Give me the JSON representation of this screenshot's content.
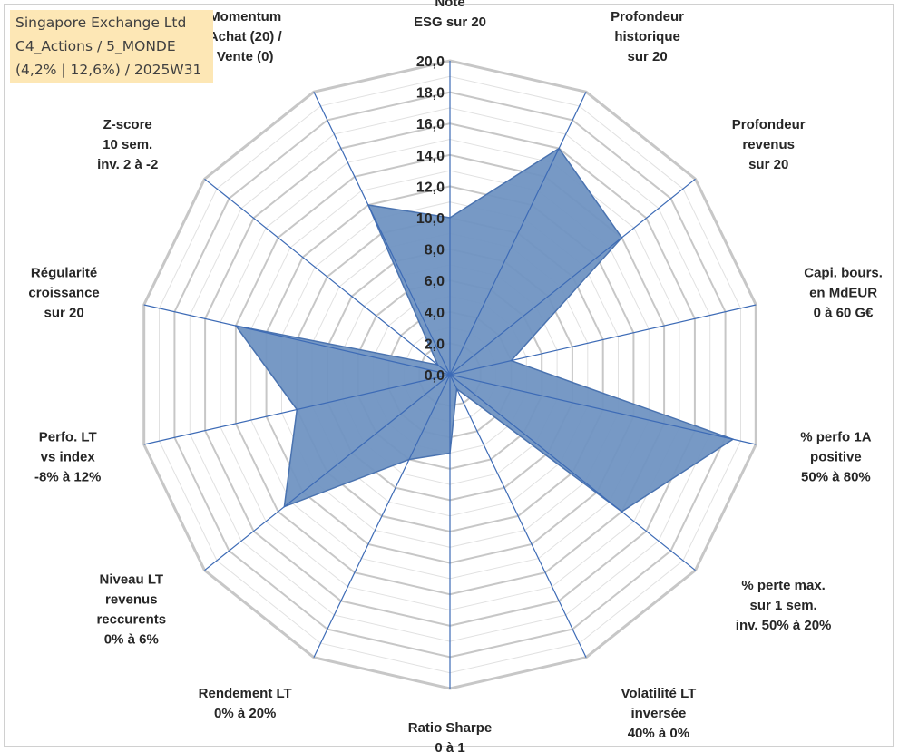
{
  "info": {
    "line1": "Singapore Exchange Ltd",
    "line2": "C4_Actions / 5_MONDE",
    "line3": "(4,2% | 12,6%) / 2025W31"
  },
  "colors": {
    "fill": "#7094c2",
    "outline": "#4a73b0",
    "axis": "#3d6bb6",
    "grid_major": "#c7c7c7",
    "grid_minor": "#e1e1e1",
    "info_bg": "#fde7b5"
  },
  "chart_data": {
    "type": "radar",
    "rmin": 0,
    "rmax": 20,
    "grid": true,
    "ticks": [
      "0,0",
      "2,0",
      "4,0",
      "6,0",
      "8,0",
      "10,0",
      "12,0",
      "14,0",
      "16,0",
      "18,0",
      "20,0"
    ],
    "axes": [
      [
        "Note",
        "ESG sur 20"
      ],
      [
        "Profondeur",
        "historique",
        "sur 20"
      ],
      [
        "Profondeur",
        "revenus",
        "sur 20"
      ],
      [
        "Capi. bours.",
        "en MdEUR",
        "0 à 60 G€"
      ],
      [
        "% perfo 1A",
        "positive",
        "50% à 80%"
      ],
      [
        "% perte max.",
        "sur 1 sem.",
        "inv. 50% à 20%"
      ],
      [
        "Volatilité LT",
        "inversée",
        "40% à 0%"
      ],
      [
        "Ratio Sharpe",
        "0 à 1"
      ],
      [
        "Rendement LT",
        "0% à 20%"
      ],
      [
        "Niveau LT",
        "revenus",
        "reccurents",
        "0% à 6%"
      ],
      [
        "Perfo. LT",
        "vs index",
        "-8% à 12%"
      ],
      [
        "Régularité",
        "croissance",
        "sur 20"
      ],
      [
        "Z-score",
        "10 sem.",
        "inv. 2 à -2"
      ],
      [
        "Momentum",
        "Achat (20) /",
        "Vente (0)"
      ]
    ],
    "values": [
      10.0,
      16.0,
      14.0,
      4.0,
      18.5,
      14.0,
      1.0,
      5.0,
      6.0,
      13.5,
      10.0,
      14.0,
      1.0,
      12.0
    ]
  }
}
